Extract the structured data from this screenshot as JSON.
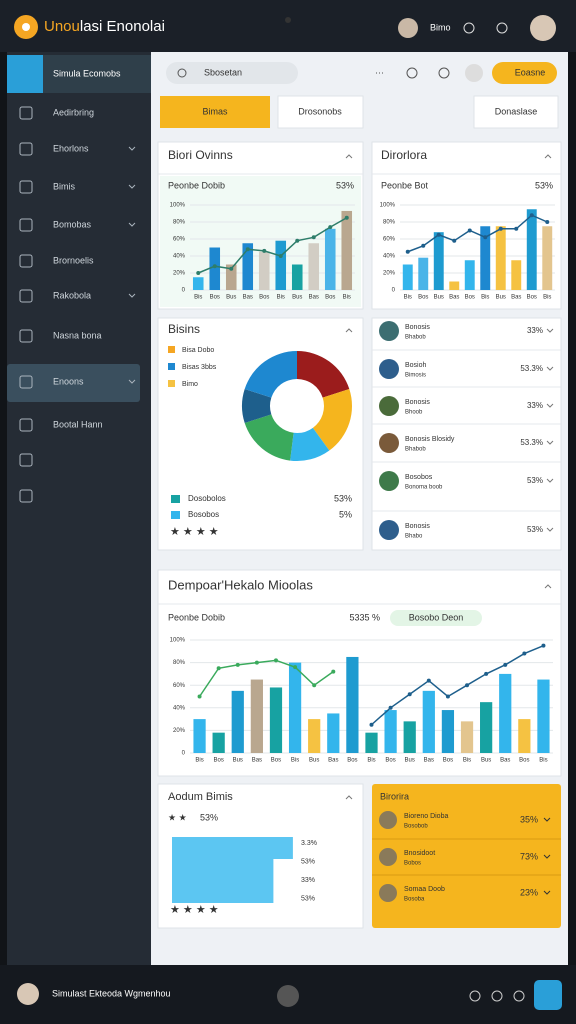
{
  "header": {
    "title_accent": "Unou",
    "title_rest": "lasi Enonolai",
    "user": "Bimo"
  },
  "sidebar": {
    "brand": "Simula Ecomobs",
    "items": [
      "Aedirbring",
      "Ehorlons",
      "Bimis",
      "Bomobas",
      "Brornoelis",
      "Rakobola",
      "Nasna bona",
      "Enoons",
      "Bootal Hann"
    ]
  },
  "toolbar": {
    "search": "Sbosetan",
    "button": "Eoasne"
  },
  "tabs": [
    "Bimas",
    "Drosonobs",
    "Donaslase"
  ],
  "sales": {
    "title": "Biori Ovinns",
    "legend": "Peonbe Dobib",
    "badge": "53%",
    "chart": {
      "type": "bar",
      "categories": [
        "Bis",
        "Bos",
        "Bus",
        "Bas",
        "Bos",
        "Bis",
        "Bus",
        "Bas",
        "Bos",
        "Bis"
      ],
      "bars": [
        15,
        50,
        30,
        55,
        45,
        58,
        30,
        55,
        72,
        93
      ],
      "bar_colors": [
        "#33b5ec",
        "#1e88d0",
        "#b9a78f",
        "#1e88d0",
        "#d2cdc4",
        "#1e9bd0",
        "#17a2a2",
        "#d2cdc4",
        "#4ab4e8",
        "#b9a78f"
      ],
      "lines": [
        {
          "color": "#2e7d6a",
          "values": [
            20,
            28,
            25,
            48,
            46,
            40,
            58,
            62,
            74,
            85
          ]
        }
      ],
      "ylim": [
        0,
        100
      ],
      "yticks": [
        0,
        {
          "value": 20,
          "label": "20%"
        },
        {
          "value": 40,
          "label": "40%"
        },
        {
          "value": 60,
          "label": "60%"
        },
        {
          "value": 80,
          "label": "80%"
        },
        {
          "value": 100,
          "label": "100%"
        }
      ],
      "grid": true
    }
  },
  "direct": {
    "title": "Dirorlora",
    "legend": "Peonbe Bot",
    "badge": "53%",
    "chart": {
      "type": "bar",
      "categories": [
        "Bis",
        "Bos",
        "Bus",
        "Bas",
        "Bos",
        "Bis",
        "Bus",
        "Bas",
        "Bos",
        "Bis"
      ],
      "bars": [
        30,
        38,
        68,
        10,
        35,
        75,
        75,
        35,
        95,
        75
      ],
      "bar_colors": [
        "#33b5ec",
        "#4ab4e8",
        "#1e9bd0",
        "#f5c242",
        "#33b5ec",
        "#1e88d0",
        "#f5c242",
        "#f5c242",
        "#1e9bd0",
        "#e3c58e"
      ],
      "lines": [
        {
          "color": "#1e5f8c",
          "values": [
            45,
            52,
            65,
            58,
            70,
            62,
            72,
            72,
            88,
            80
          ]
        }
      ],
      "ylim": [
        0,
        100
      ],
      "yticks": [
        0,
        {
          "value": 20,
          "label": "20%"
        },
        {
          "value": 40,
          "label": "40%"
        },
        {
          "value": 60,
          "label": "60%"
        },
        {
          "value": 80,
          "label": "80%"
        },
        {
          "value": 100,
          "label": "100%"
        }
      ],
      "grid": true
    }
  },
  "share": {
    "title": "Bisins",
    "legend": [
      {
        "name": "Bisa Dobo",
        "color": "#f5a623"
      },
      {
        "name": "Bisas 3bbs",
        "color": "#1e88d0"
      },
      {
        "name": "Bimo",
        "color": "#f5c242"
      }
    ],
    "rows": [
      {
        "name": "Dosobolos",
        "value": "53%",
        "color": "#17a2a2"
      },
      {
        "name": "Bosobos",
        "value": "5%",
        "color": "#33b5ec"
      }
    ],
    "chart": {
      "type": "pie",
      "values": [
        20,
        20,
        12,
        18,
        10,
        20
      ],
      "colors": [
        "#9b1c1c",
        "#f5b51e",
        "#33b5ec",
        "#3aaa5c",
        "#1e5f8c",
        "#1e88d0"
      ]
    }
  },
  "people": [
    {
      "name": "Bonosis",
      "sub": "Bhabob",
      "value": "33%"
    },
    {
      "name": "Bosioh",
      "sub": "Bimosis",
      "value": "53.3%"
    },
    {
      "name": "Bonosis",
      "sub": "Bhoob",
      "value": "33%"
    },
    {
      "name": "Bonosis Blosidy",
      "sub": "Bhabob",
      "value": "53.3%"
    },
    {
      "name": "Bosobos",
      "sub": "Bonoma boob",
      "value": "53%"
    },
    {
      "name": "Bonosis",
      "sub": "Bhabo",
      "value": "53%"
    }
  ],
  "trend": {
    "title": "Dempoar'Hekalo Mioolas",
    "legend": "Peonbe Dobib",
    "total": "5335 %",
    "badge": "Bosobo Deon",
    "chart": {
      "type": "bar",
      "categories": [
        "Bis",
        "Bos",
        "Bus",
        "Bas",
        "Bos",
        "Bis",
        "Bus",
        "Bas",
        "Bos",
        "Bis",
        "Bos",
        "Bus",
        "Bas",
        "Bos",
        "Bis",
        "Bus",
        "Bas",
        "Bos",
        "Bis"
      ],
      "bars": [
        30,
        18,
        55,
        65,
        58,
        80,
        30,
        35,
        85,
        18,
        38,
        28,
        55,
        38,
        28,
        45,
        70,
        30,
        65
      ],
      "bar_colors": [
        "#33b5ec",
        "#17a2a2",
        "#1e9bd0",
        "#b9a78f",
        "#17a2a2",
        "#33b5ec",
        "#f5c242",
        "#33b5ec",
        "#1e9bd0",
        "#17a2a2",
        "#33b5ec",
        "#17a2a2",
        "#33b5ec",
        "#1e9bd0",
        "#e3c58e",
        "#17a2a2",
        "#33b5ec",
        "#f5c242",
        "#33b5ec"
      ],
      "lines": [
        {
          "color": "#3aaa5c",
          "values": [
            50,
            75,
            78,
            80,
            82,
            76,
            60,
            72,
            null,
            null,
            null,
            null,
            null,
            null,
            null,
            null,
            null,
            null,
            null
          ]
        },
        {
          "color": "#1e5f8c",
          "values": [
            null,
            null,
            null,
            null,
            null,
            null,
            null,
            null,
            null,
            25,
            40,
            52,
            64,
            50,
            60,
            70,
            78,
            88,
            95
          ]
        }
      ],
      "ylim": [
        0,
        100
      ],
      "yticks": [
        0,
        {
          "value": 20,
          "label": "20%"
        },
        {
          "value": 40,
          "label": "40%"
        },
        {
          "value": 60,
          "label": "60%"
        },
        {
          "value": 80,
          "label": "80%"
        },
        {
          "value": 100,
          "label": "100%"
        }
      ],
      "grid": true
    }
  },
  "random": {
    "title": "Aodum Bimis",
    "badge": "53%",
    "bars": [
      93,
      78,
      78
    ],
    "xlim": [
      0,
      100
    ],
    "color": "#5cc6f2",
    "notes": [
      "3.3%",
      "53%",
      "33%",
      "53%"
    ]
  },
  "ranking": {
    "title": "Birorira",
    "rows": [
      {
        "name": "Bioreno Dioba",
        "sub": "Bosobob",
        "value": "35%"
      },
      {
        "name": "Bnosidoot",
        "sub": "Bobos",
        "value": "73%"
      },
      {
        "name": "Somaa Doob",
        "sub": "Bosoba",
        "value": "23%"
      }
    ]
  },
  "footer": {
    "user": "Simulast Ekteoda Wgmenhou"
  }
}
